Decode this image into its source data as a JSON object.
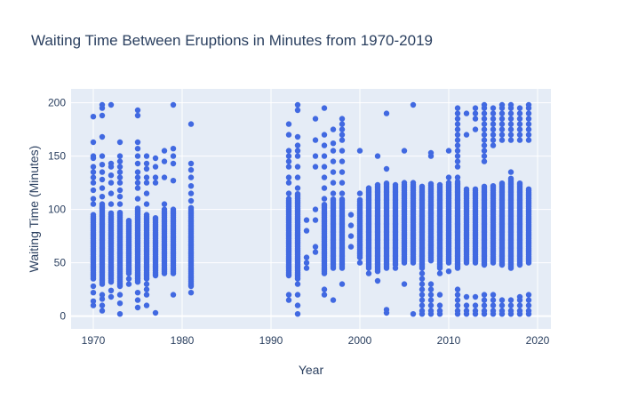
{
  "chart_data": {
    "type": "scatter",
    "title": "Waiting Time Between Eruptions in Minutes from 1970-2019",
    "xlabel": "Year",
    "ylabel": "Waiting Time (Minutes)",
    "xlim": [
      1967.5,
      2021.5
    ],
    "ylim": [
      -12,
      213
    ],
    "x_ticks": [
      1970,
      1980,
      1990,
      2000,
      2010,
      2020
    ],
    "y_ticks": [
      0,
      50,
      100,
      150,
      200
    ],
    "grid": true,
    "marker_color": "#4169e1",
    "plot_background": "#e5ecf6",
    "series": [
      {
        "years": [
          {
            "x": 1970,
            "dense": [
              35,
              95
            ],
            "scatter": [
              10,
              14,
              22,
              28,
              105,
              110,
              118,
              125,
              130,
              135,
              140,
              148,
              150,
              163,
              187
            ]
          },
          {
            "x": 1971,
            "dense": [
              30,
              105
            ],
            "scatter": [
              5,
              10,
              16,
              20,
              112,
              120,
              128,
              135,
              142,
              150,
              168,
              188,
              195,
              198
            ]
          },
          {
            "x": 1972,
            "dense": [
              32,
              97
            ],
            "scatter": [
              18,
              24,
              105,
              115,
              125,
              132,
              140,
              143,
              198
            ]
          },
          {
            "x": 1973,
            "dense": [
              28,
              97
            ],
            "scatter": [
              2,
              12,
              20,
              105,
              112,
              118,
              125,
              130,
              135,
              140,
              145,
              150,
              163
            ]
          },
          {
            "x": 1974,
            "dense": [
              40,
              90
            ],
            "scatter": [
              30,
              35
            ]
          },
          {
            "x": 1975,
            "dense": [
              32,
              102
            ],
            "scatter": [
              8,
              15,
              22,
              110,
              120,
              125,
              130,
              135,
              143,
              150,
              157,
              163,
              188,
              193
            ]
          },
          {
            "x": 1976,
            "dense": [
              35,
              95
            ],
            "scatter": [
              10,
              20,
              25,
              30,
              105,
              115,
              125,
              130,
              138,
              143,
              150
            ]
          },
          {
            "x": 1977,
            "dense": [
              38,
              93
            ],
            "scatter": [
              3,
              125,
              130,
              140,
              148
            ]
          },
          {
            "x": 1978,
            "dense": [
              40,
              100
            ],
            "scatter": [
              105,
              130,
              145,
              155
            ]
          },
          {
            "x": 1979,
            "dense": [
              40,
              100
            ],
            "scatter": [
              20,
              127,
              143,
              150,
              157,
              198
            ]
          },
          {
            "x": 1981,
            "dense": [
              28,
              102
            ],
            "scatter": [
              22,
              108,
              115,
              122,
              130,
              137,
              143,
              180
            ]
          },
          {
            "x": 1992,
            "dense": [
              38,
              110
            ],
            "scatter": [
              15,
              20,
              115,
              125,
              130,
              140,
              145,
              150,
              155,
              170,
              180
            ]
          },
          {
            "x": 1993,
            "dense": [
              35,
              115
            ],
            "scatter": [
              2,
              10,
              20,
              30,
              120,
              130,
              140,
              150,
              155,
              160,
              168,
              193,
              198
            ]
          },
          {
            "x": 1994,
            "dense": [],
            "scatter": [
              45,
              50,
              55,
              80,
              90
            ]
          },
          {
            "x": 1995,
            "dense": [],
            "scatter": [
              60,
              65,
              90,
              100,
              140,
              150,
              165,
              185
            ]
          },
          {
            "x": 1996,
            "dense": [
              40,
              105
            ],
            "scatter": [
              20,
              25,
              110,
              120,
              130,
              140,
              150,
              160,
              170,
              195
            ]
          },
          {
            "x": 1997,
            "dense": [
              45,
              110
            ],
            "scatter": [
              15,
              115,
              125,
              135,
              145,
              155,
              162,
              175
            ]
          },
          {
            "x": 1998,
            "dense": [
              45,
              110
            ],
            "scatter": [
              30,
              115,
              125,
              135,
              145,
              155,
              165,
              170,
              175,
              180,
              185
            ]
          },
          {
            "x": 1999,
            "dense": [],
            "scatter": [
              65,
              75,
              85,
              95
            ]
          },
          {
            "x": 2000,
            "dense": [
              55,
              110
            ],
            "scatter": [
              50,
              115,
              155
            ]
          },
          {
            "x": 2001,
            "dense": [
              45,
              120
            ],
            "scatter": [
              40
            ]
          },
          {
            "x": 2002,
            "dense": [
              42,
              123
            ],
            "scatter": [
              33,
              150
            ]
          },
          {
            "x": 2003,
            "dense": [
              45,
              125
            ],
            "scatter": [
              3,
              6,
              138,
              190
            ]
          },
          {
            "x": 2004,
            "dense": [
              48,
              124
            ],
            "scatter": [
              45
            ]
          },
          {
            "x": 2005,
            "dense": [
              50,
              125
            ],
            "scatter": [
              30,
              155
            ]
          },
          {
            "x": 2006,
            "dense": [
              50,
              125
            ],
            "scatter": [
              2,
              198
            ]
          },
          {
            "x": 2007,
            "dense": [
              45,
              122
            ],
            "scatter": [
              2,
              5,
              10,
              15,
              20,
              25,
              30,
              35,
              40
            ]
          },
          {
            "x": 2008,
            "dense": [
              52,
              125
            ],
            "scatter": [
              2,
              5,
              10,
              15,
              20,
              25,
              30,
              150,
              153
            ]
          },
          {
            "x": 2009,
            "dense": [
              45,
              124
            ],
            "scatter": [
              2,
              5,
              10,
              20,
              40
            ]
          },
          {
            "x": 2010,
            "dense": [
              50,
              126
            ],
            "scatter": [
              42,
              130,
              155
            ]
          },
          {
            "x": 2011,
            "dense": [
              45,
              126
            ],
            "scatter": [
              2,
              5,
              10,
              15,
              20,
              25,
              130,
              140,
              145,
              150,
              155,
              160,
              165,
              170,
              175,
              180,
              185,
              190,
              195
            ]
          },
          {
            "x": 2012,
            "dense": [
              50,
              120
            ],
            "scatter": [
              2,
              5,
              10,
              18,
              170,
              190
            ]
          },
          {
            "x": 2013,
            "dense": [
              50,
              120
            ],
            "scatter": [
              2,
              5,
              10,
              18,
              175,
              185,
              190,
              195
            ]
          },
          {
            "x": 2014,
            "dense": [
              48,
              122
            ],
            "scatter": [
              2,
              5,
              10,
              15,
              20,
              145,
              150,
              155,
              160,
              165,
              170,
              175,
              180,
              185,
              190,
              195,
              198
            ]
          },
          {
            "x": 2015,
            "dense": [
              50,
              122
            ],
            "scatter": [
              2,
              5,
              10,
              15,
              20,
              160,
              165,
              170,
              175,
              180,
              185,
              190,
              195
            ]
          },
          {
            "x": 2016,
            "dense": [
              48,
              125
            ],
            "scatter": [
              2,
              5,
              10,
              15,
              165,
              170,
              175,
              180,
              185,
              190,
              195,
              198
            ]
          },
          {
            "x": 2017,
            "dense": [
              45,
              130
            ],
            "scatter": [
              2,
              5,
              10,
              15,
              135,
              165,
              170,
              175,
              180,
              185,
              190,
              195,
              198
            ]
          },
          {
            "x": 2018,
            "dense": [
              48,
              125
            ],
            "scatter": [
              2,
              5,
              10,
              15,
              18,
              165,
              170,
              175,
              180,
              185,
              190,
              195
            ]
          },
          {
            "x": 2019,
            "dense": [
              50,
              120
            ],
            "scatter": [
              2,
              5,
              10,
              15,
              20,
              165,
              170,
              175,
              180,
              185,
              190,
              195,
              198
            ]
          }
        ]
      }
    ]
  }
}
